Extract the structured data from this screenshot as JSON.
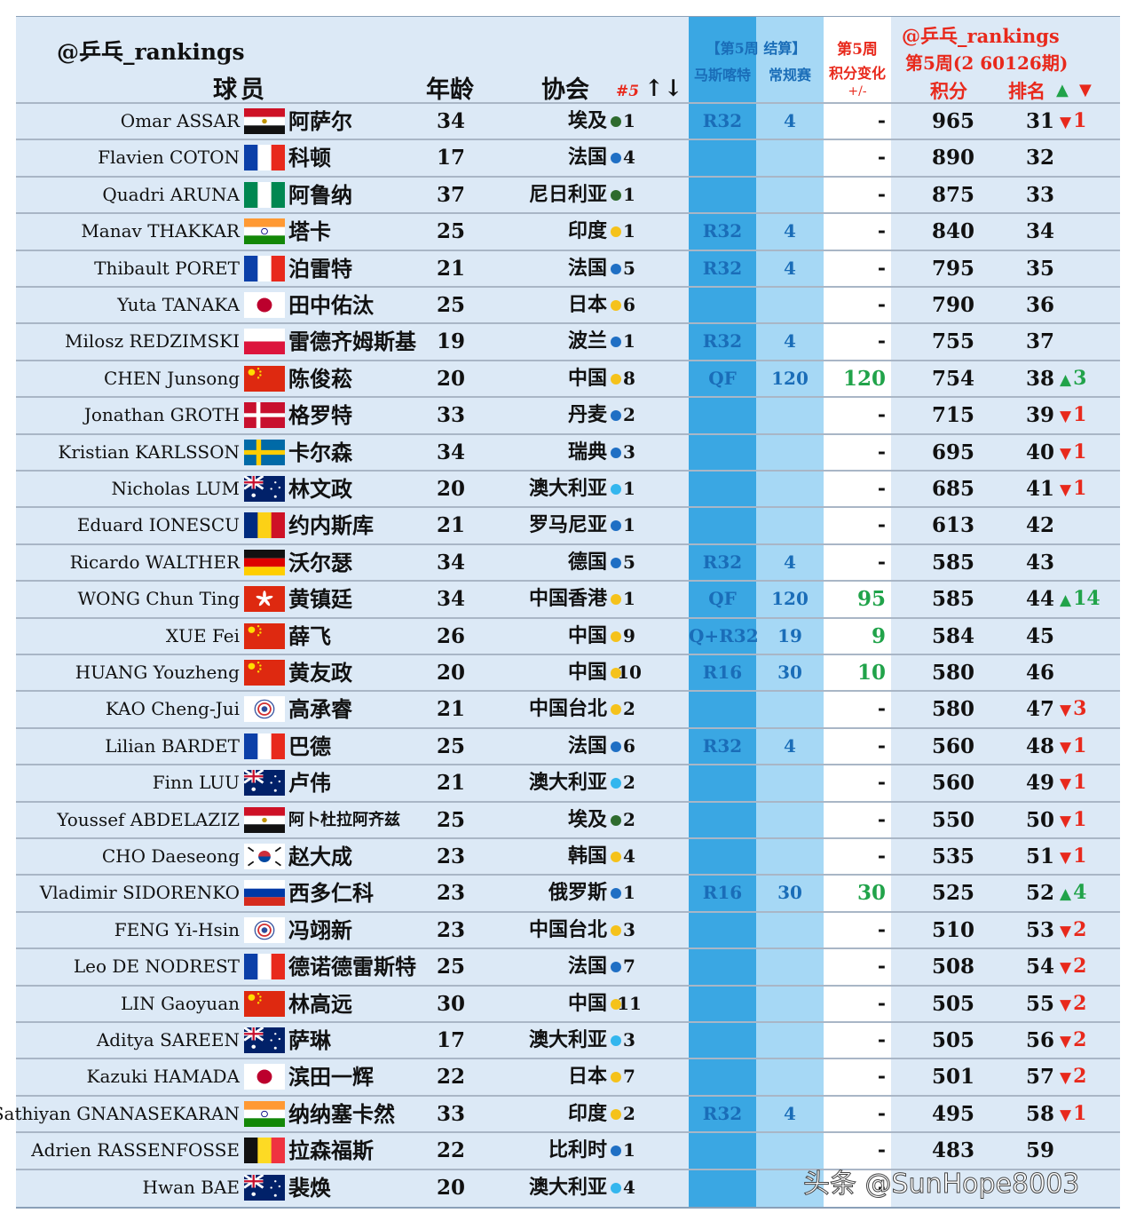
{
  "header": {
    "handle": "@乒乓_rankings",
    "player": "球员",
    "age": "年龄",
    "assoc": "协会",
    "num": "#5",
    "sort": "↑↓",
    "week_result": "【第5周 结算】",
    "masters": "马斯喀特",
    "regular": "常规赛",
    "week5": "第5周",
    "change": "积分变化",
    "plusminus": "+/-",
    "handle2": "@乒乓_rankings",
    "period": "第5周(2 60126期)",
    "points": "积分",
    "rank": "排名",
    "up_arrow": "▲",
    "down_arrow": "▼"
  },
  "colors": {
    "eu": "#1f6fc4",
    "af": "#2e6b2e",
    "as": "#f5c21b",
    "oc": "#33b6ee",
    "up": "#21a34a",
    "down": "#e8291c"
  },
  "rows": [
    {
      "name": "Omar ASSAR",
      "flag": "egypt-flag",
      "cn": "阿萨尔",
      "age": "34",
      "assoc": "埃及",
      "cont": "af",
      "num": "1",
      "res": "R32",
      "rpts": "4",
      "chg": "-",
      "pts": "965",
      "rank": "31",
      "mv": "1",
      "dir": "down"
    },
    {
      "name": "Flavien COTON",
      "flag": "france-flag",
      "cn": "科顿",
      "age": "17",
      "assoc": "法国",
      "cont": "eu",
      "num": "4",
      "res": "",
      "rpts": "",
      "chg": "-",
      "pts": "890",
      "rank": "32",
      "mv": "",
      "dir": ""
    },
    {
      "name": "Quadri ARUNA",
      "flag": "nigeria-flag",
      "cn": "阿鲁纳",
      "age": "37",
      "assoc": "尼日利亚",
      "cont": "af",
      "num": "1",
      "res": "",
      "rpts": "",
      "chg": "-",
      "pts": "875",
      "rank": "33",
      "mv": "",
      "dir": ""
    },
    {
      "name": "Manav THAKKAR",
      "flag": "india-flag",
      "cn": "塔卡",
      "age": "25",
      "assoc": "印度",
      "cont": "as",
      "num": "1",
      "res": "R32",
      "rpts": "4",
      "chg": "-",
      "pts": "840",
      "rank": "34",
      "mv": "",
      "dir": ""
    },
    {
      "name": "Thibault PORET",
      "flag": "france-flag",
      "cn": "泊雷特",
      "age": "21",
      "assoc": "法国",
      "cont": "eu",
      "num": "5",
      "res": "R32",
      "rpts": "4",
      "chg": "-",
      "pts": "795",
      "rank": "35",
      "mv": "",
      "dir": ""
    },
    {
      "name": "Yuta TANAKA",
      "flag": "japan-flag",
      "cn": "田中佑汰",
      "age": "25",
      "assoc": "日本",
      "cont": "as",
      "num": "6",
      "res": "",
      "rpts": "",
      "chg": "-",
      "pts": "790",
      "rank": "36",
      "mv": "",
      "dir": ""
    },
    {
      "name": "Milosz REDZIMSKI",
      "flag": "poland-flag",
      "cn": "雷德齐姆斯基",
      "age": "19",
      "assoc": "波兰",
      "cont": "eu",
      "num": "1",
      "res": "R32",
      "rpts": "4",
      "chg": "-",
      "pts": "755",
      "rank": "37",
      "mv": "",
      "dir": ""
    },
    {
      "name": "CHEN Junsong",
      "flag": "china-flag",
      "cn": "陈俊菘",
      "age": "20",
      "assoc": "中国",
      "cont": "as",
      "num": "8",
      "res": "QF",
      "rpts": "120",
      "chg": "120",
      "pts": "754",
      "rank": "38",
      "mv": "3",
      "dir": "up"
    },
    {
      "name": "Jonathan GROTH",
      "flag": "denmark-flag",
      "cn": "格罗特",
      "age": "33",
      "assoc": "丹麦",
      "cont": "eu",
      "num": "2",
      "res": "",
      "rpts": "",
      "chg": "-",
      "pts": "715",
      "rank": "39",
      "mv": "1",
      "dir": "down"
    },
    {
      "name": "Kristian KARLSSON",
      "flag": "sweden-flag",
      "cn": "卡尔森",
      "age": "34",
      "assoc": "瑞典",
      "cont": "eu",
      "num": "3",
      "res": "",
      "rpts": "",
      "chg": "-",
      "pts": "695",
      "rank": "40",
      "mv": "1",
      "dir": "down"
    },
    {
      "name": "Nicholas LUM",
      "flag": "australia-flag",
      "cn": "林文政",
      "age": "20",
      "assoc": "澳大利亚",
      "cont": "oc",
      "num": "1",
      "res": "",
      "rpts": "",
      "chg": "-",
      "pts": "685",
      "rank": "41",
      "mv": "1",
      "dir": "down"
    },
    {
      "name": "Eduard IONESCU",
      "flag": "romania-flag",
      "cn": "约内斯库",
      "age": "21",
      "assoc": "罗马尼亚",
      "cont": "eu",
      "num": "1",
      "res": "",
      "rpts": "",
      "chg": "-",
      "pts": "613",
      "rank": "42",
      "mv": "",
      "dir": ""
    },
    {
      "name": "Ricardo WALTHER",
      "flag": "germany-flag",
      "cn": "沃尔瑟",
      "age": "34",
      "assoc": "德国",
      "cont": "eu",
      "num": "5",
      "res": "R32",
      "rpts": "4",
      "chg": "-",
      "pts": "585",
      "rank": "43",
      "mv": "",
      "dir": ""
    },
    {
      "name": "WONG Chun Ting",
      "flag": "hongkong-flag",
      "cn": "黄镇廷",
      "age": "34",
      "assoc": "中国香港",
      "cont": "as",
      "num": "1",
      "res": "QF",
      "rpts": "120",
      "chg": "95",
      "pts": "585",
      "rank": "44",
      "mv": "14",
      "dir": "up"
    },
    {
      "name": "XUE Fei",
      "flag": "china-flag",
      "cn": "薛飞",
      "age": "26",
      "assoc": "中国",
      "cont": "as",
      "num": "9",
      "res": "Q+R32",
      "rpts": "19",
      "chg": "9",
      "pts": "584",
      "rank": "45",
      "mv": "",
      "dir": ""
    },
    {
      "name": "HUANG Youzheng",
      "flag": "china-flag",
      "cn": "黄友政",
      "age": "20",
      "assoc": "中国",
      "cont": "as",
      "num": "10",
      "res": "R16",
      "rpts": "30",
      "chg": "10",
      "pts": "580",
      "rank": "46",
      "mv": "",
      "dir": ""
    },
    {
      "name": "KAO Cheng-Jui",
      "flag": "chinese-taipei-flag",
      "cn": "高承睿",
      "age": "21",
      "assoc": "中国台北",
      "cont": "as",
      "num": "2",
      "res": "",
      "rpts": "",
      "chg": "-",
      "pts": "580",
      "rank": "47",
      "mv": "3",
      "dir": "down"
    },
    {
      "name": "Lilian BARDET",
      "flag": "france-flag",
      "cn": "巴德",
      "age": "25",
      "assoc": "法国",
      "cont": "eu",
      "num": "6",
      "res": "R32",
      "rpts": "4",
      "chg": "-",
      "pts": "560",
      "rank": "48",
      "mv": "1",
      "dir": "down"
    },
    {
      "name": "Finn LUU",
      "flag": "australia-flag",
      "cn": "卢伟",
      "age": "21",
      "assoc": "澳大利亚",
      "cont": "oc",
      "num": "2",
      "res": "",
      "rpts": "",
      "chg": "-",
      "pts": "560",
      "rank": "49",
      "mv": "1",
      "dir": "down"
    },
    {
      "name": "Youssef ABDELAZIZ",
      "flag": "egypt-flag",
      "cn": "阿卜杜拉阿齐兹",
      "age": "25",
      "assoc": "埃及",
      "cont": "af",
      "num": "2",
      "res": "",
      "rpts": "",
      "chg": "-",
      "pts": "550",
      "rank": "50",
      "mv": "1",
      "dir": "down",
      "small": true
    },
    {
      "name": "CHO Daeseong",
      "flag": "korea-flag",
      "cn": "赵大成",
      "age": "23",
      "assoc": "韩国",
      "cont": "as",
      "num": "4",
      "res": "",
      "rpts": "",
      "chg": "-",
      "pts": "535",
      "rank": "51",
      "mv": "1",
      "dir": "down"
    },
    {
      "name": "Vladimir SIDORENKO",
      "flag": "russia-flag",
      "cn": "西多仁科",
      "age": "23",
      "assoc": "俄罗斯",
      "cont": "eu",
      "num": "1",
      "res": "R16",
      "rpts": "30",
      "chg": "30",
      "pts": "525",
      "rank": "52",
      "mv": "4",
      "dir": "up"
    },
    {
      "name": "FENG Yi-Hsin",
      "flag": "chinese-taipei-flag",
      "cn": "冯翊新",
      "age": "23",
      "assoc": "中国台北",
      "cont": "as",
      "num": "3",
      "res": "",
      "rpts": "",
      "chg": "-",
      "pts": "510",
      "rank": "53",
      "mv": "2",
      "dir": "down"
    },
    {
      "name": "Leo DE NODREST",
      "flag": "france-flag",
      "cn": "德诺德雷斯特",
      "age": "25",
      "assoc": "法国",
      "cont": "eu",
      "num": "7",
      "res": "",
      "rpts": "",
      "chg": "-",
      "pts": "508",
      "rank": "54",
      "mv": "2",
      "dir": "down"
    },
    {
      "name": "LIN Gaoyuan",
      "flag": "china-flag",
      "cn": "林高远",
      "age": "30",
      "assoc": "中国",
      "cont": "as",
      "num": "11",
      "res": "",
      "rpts": "",
      "chg": "-",
      "pts": "505",
      "rank": "55",
      "mv": "2",
      "dir": "down"
    },
    {
      "name": "Aditya SAREEN",
      "flag": "australia-flag",
      "cn": "萨琳",
      "age": "17",
      "assoc": "澳大利亚",
      "cont": "oc",
      "num": "3",
      "res": "",
      "rpts": "",
      "chg": "-",
      "pts": "505",
      "rank": "56",
      "mv": "2",
      "dir": "down"
    },
    {
      "name": "Kazuki HAMADA",
      "flag": "japan-flag",
      "cn": "滨田一辉",
      "age": "22",
      "assoc": "日本",
      "cont": "as",
      "num": "7",
      "res": "",
      "rpts": "",
      "chg": "-",
      "pts": "501",
      "rank": "57",
      "mv": "2",
      "dir": "down"
    },
    {
      "name": "Sathiyan GNANASEKARAN",
      "flag": "india-flag",
      "cn": "纳纳塞卡然",
      "age": "33",
      "assoc": "印度",
      "cont": "as",
      "num": "2",
      "res": "R32",
      "rpts": "4",
      "chg": "-",
      "pts": "495",
      "rank": "58",
      "mv": "1",
      "dir": "down"
    },
    {
      "name": "Adrien RASSENFOSSE",
      "flag": "belgium-flag",
      "cn": "拉森福斯",
      "age": "22",
      "assoc": "比利时",
      "cont": "eu",
      "num": "1",
      "res": "",
      "rpts": "",
      "chg": "-",
      "pts": "483",
      "rank": "59",
      "mv": "",
      "dir": ""
    },
    {
      "name": "Hwan BAE",
      "flag": "australia-flag",
      "cn": "裴焕",
      "age": "20",
      "assoc": "澳大利亚",
      "cont": "oc",
      "num": "4",
      "res": "",
      "rpts": "",
      "chg": "-",
      "pts": "",
      "rank": "",
      "mv": "",
      "dir": ""
    }
  ],
  "watermark": "头条 @SunHope8003"
}
